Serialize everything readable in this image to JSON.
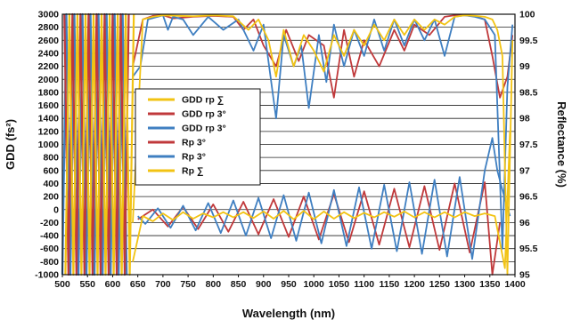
{
  "chart_data": {
    "type": "line",
    "xlabel": "Wavelength (nm)",
    "ylabel_left": "GDD (fs²)",
    "ylabel_right": "Reflectance (%)",
    "xlim": [
      500,
      1400
    ],
    "ylim_left": [
      -1000,
      3000
    ],
    "ylim_right": [
      95,
      100
    ],
    "x_ticks": [
      500,
      550,
      600,
      650,
      700,
      750,
      800,
      850,
      900,
      950,
      1000,
      1050,
      1100,
      1150,
      1200,
      1250,
      1300,
      1350,
      1400
    ],
    "y_left_ticks": [
      -1000,
      -800,
      -600,
      -400,
      -200,
      0,
      200,
      400,
      600,
      800,
      1000,
      1200,
      1400,
      1600,
      1800,
      2000,
      2200,
      2400,
      2600,
      2800,
      3000
    ],
    "y_right_ticks": [
      95,
      95.5,
      96,
      96.5,
      97,
      97.5,
      98,
      98.5,
      99,
      99.5,
      100
    ],
    "grid": "horizontal",
    "legend_position": "center-left",
    "legend": [
      {
        "label": "GDD rp ∑",
        "color": "#f2c313"
      },
      {
        "label": "GDD rp 3°",
        "color": "#c0393b"
      },
      {
        "label": "GDD rp 3°",
        "color": "#3f7fc1"
      },
      {
        "label": "Rp 3°",
        "color": "#c0393b"
      },
      {
        "label": "Rp 3°",
        "color": "#3f7fc1"
      },
      {
        "label": "Rp ∑",
        "color": "#f2c313"
      }
    ],
    "series": [
      {
        "axis": "left",
        "color": "#c0393b",
        "x": [
          650,
          680,
          710,
          740,
          770,
          800,
          830,
          860,
          890,
          920,
          950,
          980,
          1010,
          1040,
          1070,
          1100,
          1130,
          1160,
          1190,
          1220,
          1250,
          1280,
          1310,
          1340,
          1355,
          1370
        ],
        "y": [
          -150,
          0,
          -260,
          40,
          -300,
          80,
          -340,
          120,
          -380,
          160,
          -420,
          200,
          -460,
          240,
          -500,
          280,
          -540,
          320,
          -580,
          360,
          -620,
          400,
          -660,
          420,
          -1000,
          -200
        ]
      },
      {
        "axis": "left",
        "color": "#3f7fc1",
        "x": [
          650,
          665,
          690,
          715,
          740,
          765,
          790,
          815,
          840,
          865,
          890,
          915,
          940,
          965,
          990,
          1015,
          1040,
          1065,
          1090,
          1115,
          1140,
          1165,
          1190,
          1215,
          1240,
          1265,
          1290,
          1315,
          1340,
          1355,
          1365,
          1375,
          1390
        ],
        "y": [
          -100,
          -220,
          20,
          -280,
          60,
          -320,
          100,
          -360,
          140,
          -400,
          180,
          -440,
          220,
          -480,
          260,
          -520,
          300,
          -560,
          340,
          -600,
          380,
          -640,
          420,
          -680,
          460,
          -720,
          500,
          -760,
          600,
          1100,
          600,
          300,
          -100
        ]
      },
      {
        "axis": "left",
        "color": "#f2c313",
        "x": [
          640,
          660,
          680,
          700,
          720,
          740,
          760,
          780,
          800,
          820,
          840,
          860,
          880,
          900,
          920,
          940,
          960,
          980,
          1000,
          1020,
          1040,
          1060,
          1080,
          1100,
          1120,
          1140,
          1160,
          1180,
          1200,
          1220,
          1240,
          1260,
          1280,
          1300,
          1320,
          1340,
          1360,
          1380,
          1390
        ],
        "y": [
          -800,
          -100,
          -180,
          -60,
          -160,
          -40,
          -140,
          -60,
          -120,
          -40,
          -120,
          -40,
          -130,
          -30,
          -140,
          -20,
          -150,
          -20,
          -150,
          -30,
          -140,
          -40,
          -130,
          -50,
          -120,
          -40,
          -110,
          -30,
          -120,
          -40,
          -120,
          -40,
          -120,
          -40,
          -100,
          -60,
          -100,
          -900,
          1200
        ]
      },
      {
        "axis": "right",
        "color": "#c0393b",
        "x": [
          640,
          660,
          680,
          700,
          720,
          760,
          800,
          840,
          860,
          880,
          900,
          925,
          945,
          970,
          990,
          1020,
          1040,
          1060,
          1080,
          1100,
          1130,
          1160,
          1180,
          1200,
          1230,
          1260,
          1280,
          1300,
          1320,
          1340,
          1355,
          1370,
          1385,
          1395
        ],
        "y": [
          99.0,
          99.9,
          99.97,
          99.98,
          99.92,
          99.95,
          99.97,
          99.95,
          99.7,
          99.9,
          99.4,
          99.0,
          99.7,
          99.1,
          99.6,
          99.4,
          98.4,
          99.7,
          98.8,
          99.5,
          99.0,
          99.7,
          99.3,
          99.8,
          99.6,
          99.95,
          99.98,
          99.98,
          99.96,
          99.9,
          99.2,
          98.4,
          98.8,
          99.6
        ]
      },
      {
        "axis": "right",
        "color": "#3f7fc1",
        "x": [
          640,
          655,
          670,
          700,
          710,
          720,
          740,
          760,
          790,
          820,
          850,
          880,
          900,
          925,
          940,
          960,
          975,
          990,
          1010,
          1025,
          1040,
          1060,
          1080,
          1100,
          1120,
          1140,
          1160,
          1180,
          1200,
          1220,
          1240,
          1260,
          1280,
          1300,
          1320,
          1340,
          1360,
          1375,
          1385,
          1395
        ],
        "y": [
          98.8,
          99.0,
          99.9,
          99.98,
          99.7,
          99.95,
          99.9,
          99.6,
          99.95,
          99.7,
          99.9,
          99.3,
          99.8,
          98.0,
          99.6,
          99.0,
          99.4,
          98.2,
          99.6,
          98.7,
          99.8,
          99.0,
          99.7,
          99.2,
          99.9,
          99.3,
          99.9,
          99.4,
          99.9,
          99.5,
          99.9,
          99.2,
          99.95,
          99.98,
          99.95,
          99.9,
          99.6,
          95.5,
          98.6,
          99.8
        ]
      },
      {
        "axis": "right",
        "color": "#f2c313",
        "x": [
          640,
          660,
          680,
          700,
          730,
          760,
          800,
          840,
          870,
          890,
          910,
          925,
          940,
          960,
          980,
          1000,
          1020,
          1040,
          1060,
          1080,
          1100,
          1120,
          1140,
          1160,
          1180,
          1200,
          1220,
          1240,
          1260,
          1280,
          1300,
          1320,
          1340,
          1355,
          1365,
          1375,
          1385,
          1395
        ],
        "y": [
          96.0,
          99.9,
          99.95,
          99.98,
          99.97,
          99.96,
          99.98,
          99.96,
          99.7,
          99.9,
          99.5,
          98.8,
          99.7,
          99.0,
          99.6,
          99.3,
          98.9,
          99.6,
          99.2,
          99.7,
          99.4,
          99.8,
          99.5,
          99.9,
          99.6,
          99.9,
          99.7,
          99.9,
          99.8,
          99.95,
          99.98,
          99.97,
          99.95,
          99.9,
          99.7,
          99.2,
          95.0,
          99.5
        ]
      },
      {
        "axis": "left",
        "color": "#3f7fc1",
        "dense": true,
        "x": [
          500,
          508,
          516,
          524,
          532,
          540,
          548,
          556,
          564,
          572,
          580,
          588,
          596,
          604,
          612,
          620,
          628
        ],
        "y": [
          -1000,
          3000,
          -1000,
          3000,
          -1000,
          3000,
          -1000,
          3000,
          -1000,
          3000,
          -1000,
          3000,
          -1000,
          3000,
          -1000,
          3000,
          -1000
        ]
      },
      {
        "axis": "left",
        "color": "#c0393b",
        "dense": true,
        "x": [
          504,
          512,
          520,
          528,
          536,
          544,
          552,
          560,
          568,
          576,
          584,
          592,
          600,
          608,
          616,
          624,
          632
        ],
        "y": [
          3000,
          -1000,
          3000,
          -1000,
          3000,
          -1000,
          3000,
          -1000,
          3000,
          -1000,
          3000,
          -1000,
          3000,
          -1000,
          3000,
          -1000,
          3000
        ]
      },
      {
        "axis": "left",
        "color": "#f2c313",
        "dense": true,
        "x": [
          506,
          514,
          522,
          530,
          538,
          546,
          554,
          562,
          570,
          578,
          586,
          594,
          602,
          610,
          618,
          626,
          634,
          642
        ],
        "y": [
          -1000,
          3000,
          -1000,
          3000,
          -1000,
          3000,
          -1000,
          3000,
          -1000,
          3000,
          -1000,
          3000,
          -1000,
          3000,
          -1000,
          3000,
          -1000,
          3000
        ]
      }
    ]
  }
}
